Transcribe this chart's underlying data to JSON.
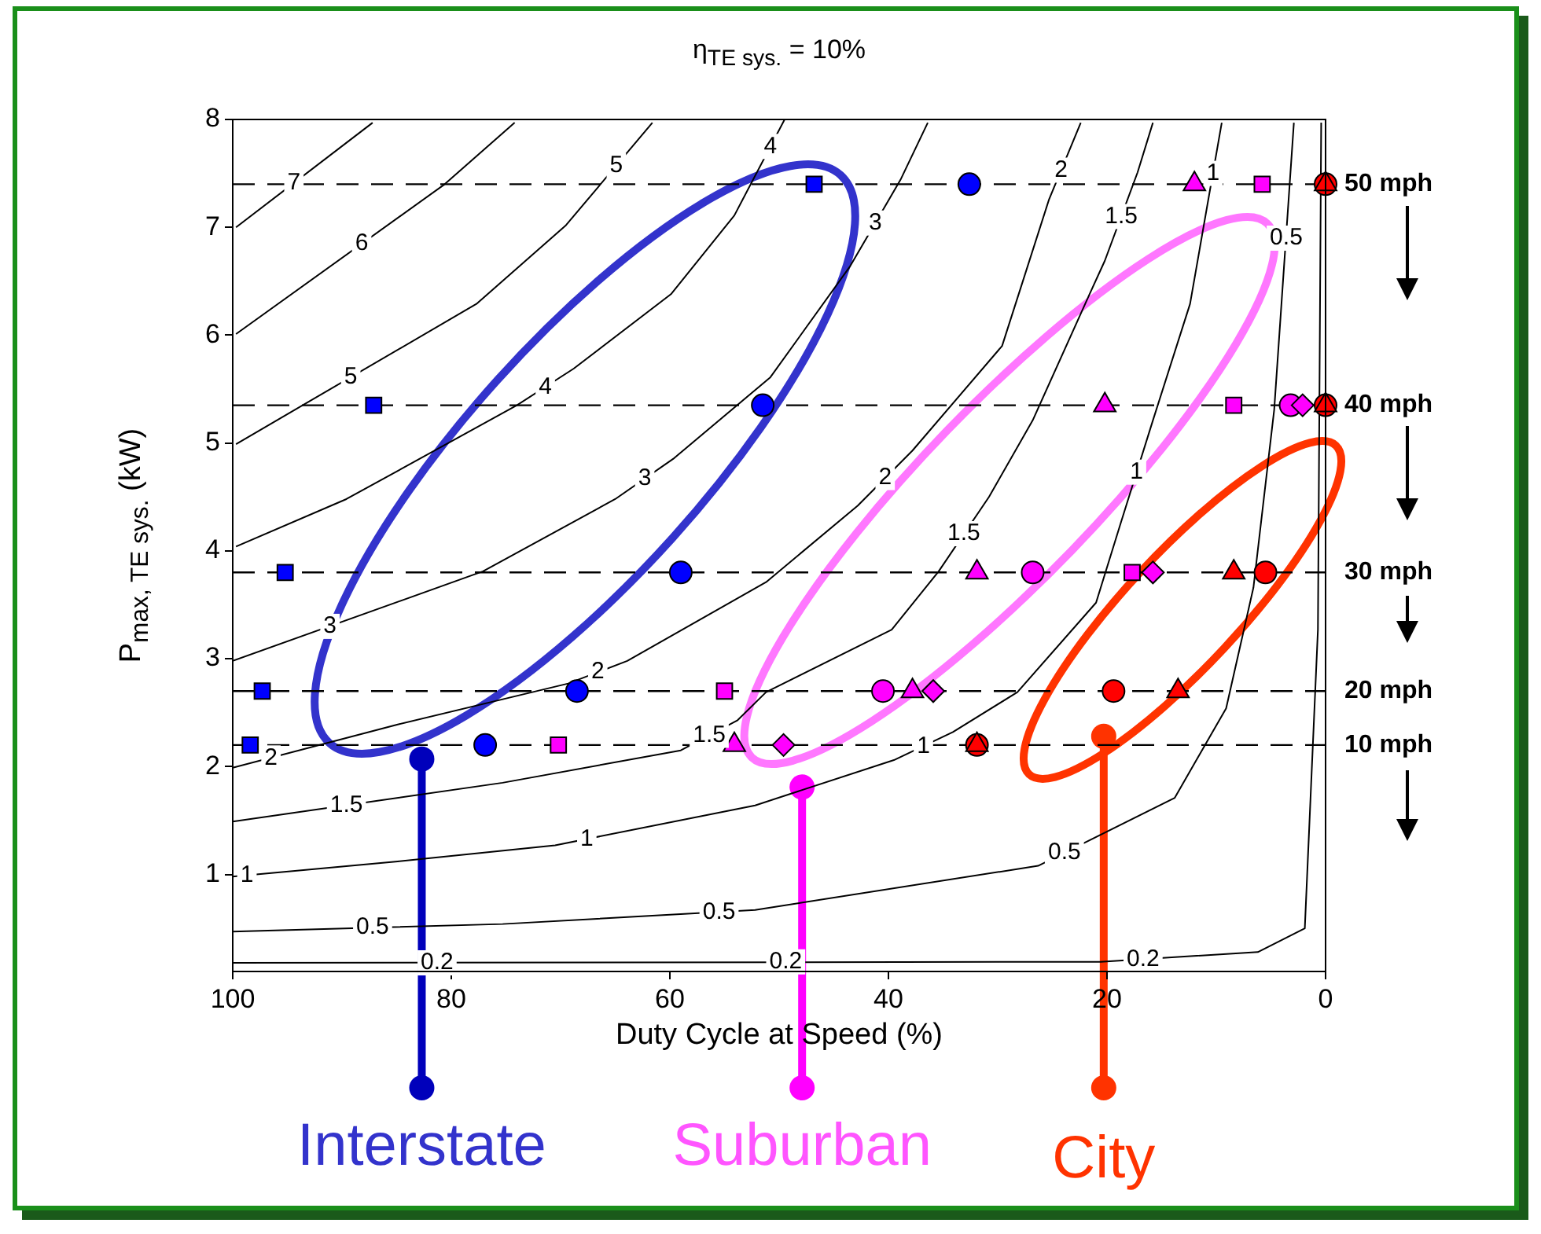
{
  "chart_data": {
    "type": "scatter",
    "title": "η$_{TE sys.}$ = 10%",
    "xlabel": "Duty Cycle at Speed (%)",
    "ylabel": "P$_{max, TE sys.}$ (kW)",
    "xlim": [
      100,
      0
    ],
    "xticks": [
      100,
      80,
      60,
      40,
      20,
      0
    ],
    "ylim": [
      0.1,
      8
    ],
    "yticks": [
      1,
      2,
      3,
      4,
      5,
      6,
      7,
      8
    ],
    "grid": false,
    "legend": false,
    "series": [
      {
        "type": "line",
        "color": "#000000",
        "marker": "none",
        "x": [
          99.7,
          87.2
        ],
        "values": [
          7.0,
          7.97
        ]
      },
      {
        "type": "line",
        "color": "#000000",
        "marker": "none",
        "x": [
          99.7,
          80.6,
          74.2
        ],
        "values": [
          6.01,
          7.4,
          7.97
        ]
      },
      {
        "type": "line",
        "color": "#000000",
        "marker": "none",
        "x": [
          99.7,
          77.7,
          69.5,
          61.6
        ],
        "values": [
          4.99,
          6.29,
          7.02,
          7.97
        ]
      },
      {
        "type": "line",
        "color": "#000000",
        "marker": "none",
        "x": [
          99.7,
          89.6,
          74.0,
          68.8,
          59.9,
          54.1,
          49.5
        ],
        "values": [
          4.04,
          4.48,
          5.35,
          5.69,
          6.38,
          7.11,
          8.0
        ]
      },
      {
        "type": "line",
        "color": "#000000",
        "marker": "none",
        "x": [
          100,
          77.1,
          65,
          59.6,
          50.8,
          43.5,
          38.9,
          36.4
        ],
        "values": [
          2.98,
          3.81,
          4.48,
          4.86,
          5.61,
          6.64,
          7.44,
          7.97
        ]
      },
      {
        "type": "line",
        "color": "#000000",
        "marker": "none",
        "x": [
          100,
          84.9,
          69.3,
          63.9,
          51.2,
          42.8,
          37.8,
          29.6,
          25.3,
          22.4
        ],
        "values": [
          1.99,
          2.39,
          2.77,
          2.98,
          3.71,
          4.42,
          4.93,
          5.9,
          7.26,
          7.97
        ]
      },
      {
        "type": "line",
        "color": "#000000",
        "marker": "none",
        "x": [
          100,
          75.3,
          59,
          53.8,
          51.2,
          39.7,
          35.4,
          30.8,
          26.8,
          21.6,
          20.2,
          17.2,
          15.8
        ],
        "values": [
          1.49,
          1.85,
          2.15,
          2.43,
          2.69,
          3.27,
          3.81,
          4.5,
          5.21,
          6.38,
          6.69,
          7.51,
          7.97
        ]
      },
      {
        "type": "line",
        "color": "#000000",
        "marker": "none",
        "x": [
          100,
          84.9,
          70.5,
          52.2,
          39.5,
          34.1,
          28.2,
          21.0,
          18.8,
          15.8,
          12.4,
          9.5
        ],
        "values": [
          0.98,
          1.12,
          1.27,
          1.64,
          2.06,
          2.32,
          2.69,
          3.52,
          4.24,
          5.21,
          6.29,
          7.97
        ]
      },
      {
        "type": "line",
        "color": "#000000",
        "marker": "none",
        "x": [
          100,
          75.3,
          52.2,
          26.3,
          13.8,
          9.1,
          6.6,
          4.7,
          2.9
        ],
        "values": [
          0.47,
          0.54,
          0.67,
          1.08,
          1.71,
          2.54,
          3.66,
          5.31,
          7.97
        ]
      },
      {
        "type": "line",
        "color": "#000000",
        "marker": "none",
        "x": [
          100,
          20.6,
          6.2,
          1.9,
          0.7,
          0.4
        ],
        "values": [
          0.18,
          0.19,
          0.28,
          0.5,
          3.27,
          7.97
        ]
      },
      {
        "type": "scatter",
        "color": "#0000ff",
        "marker": "square",
        "x": [
          46.8,
          87.1,
          95.2,
          97.3,
          98.4
        ],
        "values": [
          7.4,
          5.35,
          3.8,
          2.7,
          2.2
        ]
      },
      {
        "type": "scatter",
        "color": "#0000ff",
        "marker": "circle",
        "x": [
          32.6,
          51.5,
          59.0,
          68.5,
          76.9
        ],
        "values": [
          7.4,
          5.35,
          3.8,
          2.7,
          2.2
        ]
      },
      {
        "type": "scatter",
        "color": "#ff00ff",
        "marker": "triangle",
        "x": [
          12.0,
          20.2,
          31.9,
          37.8,
          54.1
        ],
        "values": [
          7.4,
          5.35,
          3.8,
          2.7,
          2.2
        ]
      },
      {
        "type": "scatter",
        "color": "#ff00ff",
        "marker": "square",
        "x": [
          5.8,
          8.4,
          17.7,
          55.0,
          70.2
        ],
        "values": [
          7.4,
          5.35,
          3.8,
          2.7,
          2.2
        ]
      },
      {
        "type": "scatter",
        "color": "#ff00ff",
        "marker": "circle",
        "x": [
          3.2,
          26.8,
          40.5
        ],
        "values": [
          5.35,
          3.8,
          2.7
        ]
      },
      {
        "type": "scatter",
        "color": "#ff00ff",
        "marker": "diamond",
        "x": [
          2.1,
          15.8,
          35.9,
          49.6
        ],
        "values": [
          5.35,
          3.8,
          2.7,
          2.2
        ]
      },
      {
        "type": "scatter",
        "color": "#ff0000",
        "marker": "circle",
        "x": [
          0,
          0,
          5.5,
          19.4,
          31.9
        ],
        "values": [
          7.4,
          5.35,
          3.8,
          2.7,
          2.2
        ]
      },
      {
        "type": "scatter",
        "color": "#ff0000",
        "marker": "triangle",
        "x": [
          0,
          0,
          8.4,
          13.5,
          31.9
        ],
        "values": [
          7.4,
          5.35,
          3.8,
          2.7,
          2.2
        ]
      }
    ],
    "ref_lines": [
      {
        "axis": "y",
        "value": 7.4,
        "label": "50 mph",
        "color": "#000000",
        "line_style": "dashed"
      },
      {
        "axis": "y",
        "value": 5.35,
        "label": "40 mph",
        "color": "#000000",
        "line_style": "dashed"
      },
      {
        "axis": "y",
        "value": 3.8,
        "label": "30 mph",
        "color": "#000000",
        "line_style": "dashed"
      },
      {
        "axis": "y",
        "value": 2.7,
        "label": "20 mph",
        "color": "#000000",
        "line_style": "dashed"
      },
      {
        "axis": "y",
        "value": 2.2,
        "label": "10 mph",
        "color": "#000000",
        "line_style": "dashed"
      }
    ],
    "annotations": [
      {
        "text": "Interstate",
        "x": 82.7,
        "y": 2.07
      },
      {
        "text": "Suburban",
        "x": 47.9,
        "y": 1.81
      },
      {
        "text": "City",
        "x": 20.3,
        "y": 2.28
      },
      {
        "text": "7",
        "x": 94.4,
        "y": 7.41
      },
      {
        "text": "6",
        "x": 88.2,
        "y": 6.85
      },
      {
        "text": "5",
        "x": 64.9,
        "y": 7.57
      },
      {
        "text": "5",
        "x": 89.2,
        "y": 5.61
      },
      {
        "text": "4",
        "x": 71.4,
        "y": 5.52
      },
      {
        "text": "4",
        "x": 50.8,
        "y": 7.75
      },
      {
        "text": "3",
        "x": 62.3,
        "y": 4.67
      },
      {
        "text": "3",
        "x": 91.1,
        "y": 3.3
      },
      {
        "text": "3",
        "x": 41.2,
        "y": 7.04
      },
      {
        "text": "2",
        "x": 24.2,
        "y": 7.53
      },
      {
        "text": "2",
        "x": 40.3,
        "y": 4.68
      },
      {
        "text": "2",
        "x": 66.6,
        "y": 2.88
      },
      {
        "text": "2",
        "x": 96.5,
        "y": 2.08
      },
      {
        "text": "1.5",
        "x": 18.7,
        "y": 7.1
      },
      {
        "text": "1.5",
        "x": 33.1,
        "y": 4.16
      },
      {
        "text": "1.5",
        "x": 56.4,
        "y": 2.29
      },
      {
        "text": "1.5",
        "x": 89.6,
        "y": 1.64
      },
      {
        "text": "1",
        "x": 10.3,
        "y": 7.5
      },
      {
        "text": "1",
        "x": 17.3,
        "y": 4.73
      },
      {
        "text": "1",
        "x": 36.8,
        "y": 2.19
      },
      {
        "text": "1",
        "x": 67.6,
        "y": 1.33
      },
      {
        "text": "1",
        "x": 98.7,
        "y": 0.99
      },
      {
        "text": "0.5",
        "x": 3.6,
        "y": 6.9
      },
      {
        "text": "0.5",
        "x": 23.9,
        "y": 1.2
      },
      {
        "text": "0.5",
        "x": 55.5,
        "y": 0.65
      },
      {
        "text": "0.5",
        "x": 87.2,
        "y": 0.51
      },
      {
        "text": "0.2",
        "x": 81.3,
        "y": 0.18
      },
      {
        "text": "0.2",
        "x": 49.4,
        "y": 0.19
      },
      {
        "text": "0.2",
        "x": 16.7,
        "y": 0.21
      }
    ]
  }
}
